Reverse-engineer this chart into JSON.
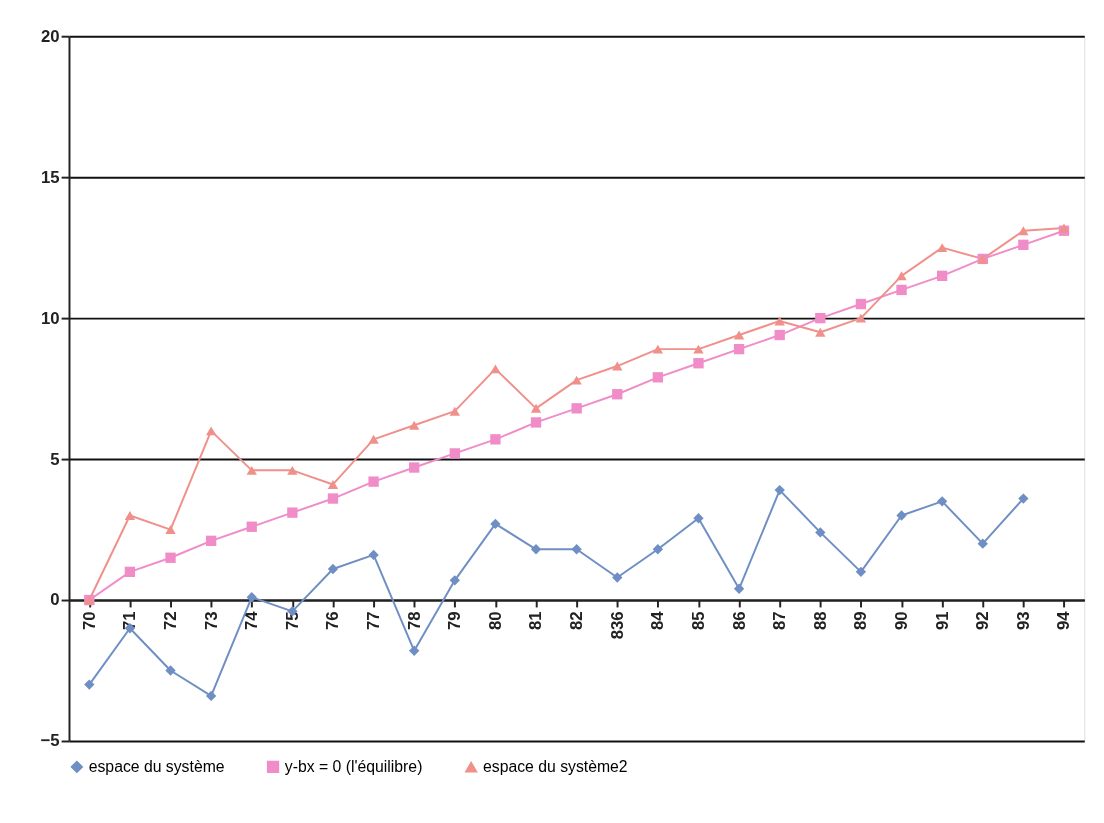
{
  "chart_data": {
    "type": "line",
    "categories": [
      "70",
      "71",
      "72",
      "73",
      "74",
      "75",
      "76",
      "77",
      "78",
      "79",
      "80",
      "81",
      "82",
      "836",
      "84",
      "85",
      "86",
      "87",
      "88",
      "89",
      "90",
      "91",
      "92",
      "93",
      "94"
    ],
    "series": [
      {
        "name": "espace du système",
        "color": "#6f8fc4",
        "marker": "diamond",
        "values": [
          -3.0,
          -1.0,
          -2.5,
          -3.4,
          0.1,
          -0.4,
          1.1,
          1.6,
          -1.8,
          0.7,
          2.7,
          1.8,
          1.8,
          0.8,
          1.8,
          2.9,
          0.4,
          3.9,
          2.4,
          1.0,
          3.0,
          3.5,
          2.0,
          3.6,
          null
        ]
      },
      {
        "name": "y-bx = 0 (l'équilibre)",
        "color": "#f08cc8",
        "marker": "square",
        "values": [
          0,
          1.0,
          1.5,
          2.1,
          2.6,
          3.1,
          3.6,
          4.2,
          4.7,
          5.2,
          5.7,
          6.3,
          6.8,
          7.3,
          7.9,
          8.4,
          8.9,
          9.4,
          10.0,
          10.5,
          11.0,
          11.5,
          12.1,
          12.6,
          13.1
        ]
      },
      {
        "name": "espace du système2",
        "color": "#f0908a",
        "marker": "triangle",
        "values": [
          0,
          3.0,
          2.5,
          6.0,
          4.6,
          4.6,
          4.1,
          5.7,
          6.2,
          6.7,
          8.2,
          6.8,
          7.8,
          8.3,
          8.9,
          8.9,
          9.4,
          9.9,
          9.5,
          10.0,
          11.5,
          12.5,
          12.1,
          13.1,
          13.2
        ]
      }
    ],
    "ylim": [
      -5,
      20
    ],
    "yticks": [
      -5,
      0,
      5,
      10,
      15,
      20
    ],
    "grid": "y",
    "legend": "bottom",
    "line_style": "solid"
  }
}
